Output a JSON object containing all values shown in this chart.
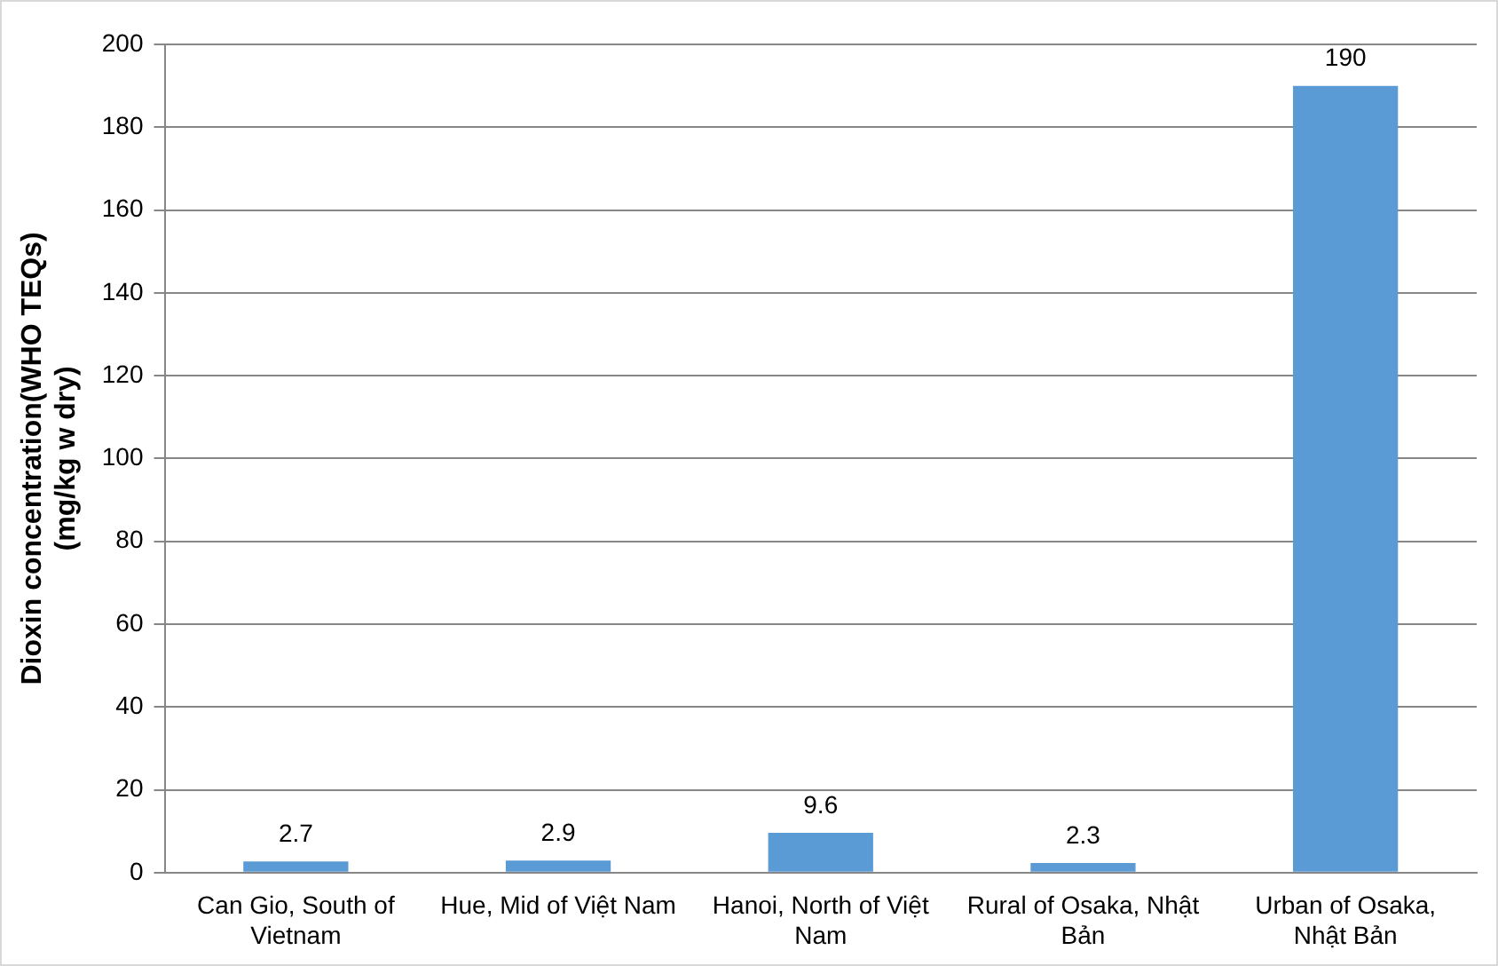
{
  "chart_data": {
    "type": "bar",
    "ylabel": "Dioxin concentration(WHO TEQs)\n(mg/kg w dry)",
    "categories": [
      "Can Gio, South of Vietnam",
      "Hue, Mid of Việt Nam",
      "Hanoi, North of Việt Nam",
      "Rural of Osaka, Nhật Bản",
      "Urban of Osaka, Nhật Bản"
    ],
    "values": [
      2.7,
      2.9,
      9.6,
      2.3,
      190
    ],
    "color": "#5b9bd5",
    "ylim": [
      0,
      200
    ],
    "yticks": [
      0,
      20,
      40,
      60,
      80,
      100,
      120,
      140,
      160,
      180,
      200
    ],
    "grid": "y",
    "data_labels": true,
    "legend": false
  }
}
